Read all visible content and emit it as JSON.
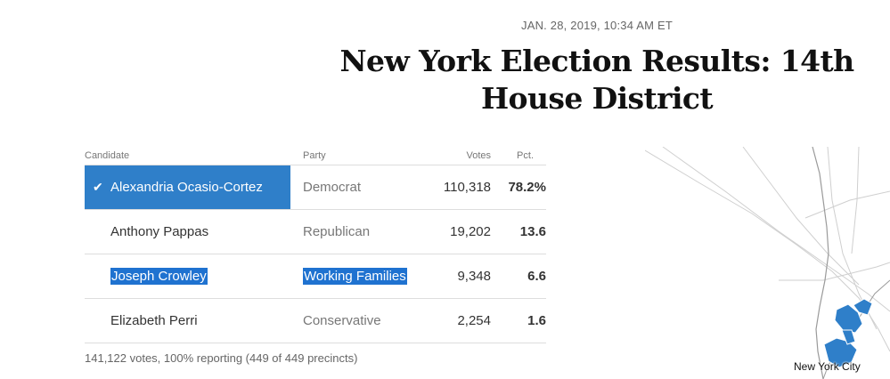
{
  "timestamp": "JAN. 28, 2019, 10:34 AM ET",
  "headline": "New York Election Results: 14th House District",
  "table": {
    "headers": {
      "candidate": "Candidate",
      "party": "Party",
      "votes": "Votes",
      "pct": "Pct."
    },
    "rows": [
      {
        "candidate": "Alexandria Ocasio-Cortez",
        "party": "Democrat",
        "votes": "110,318",
        "pct": "78.2%",
        "winner": true
      },
      {
        "candidate": "Anthony Pappas",
        "party": "Republican",
        "votes": "19,202",
        "pct": "13.6"
      },
      {
        "candidate": "Joseph Crowley",
        "party": "Working Families",
        "votes": "9,348",
        "pct": "6.6",
        "selected": true
      },
      {
        "candidate": "Elizabeth Perri",
        "party": "Conservative",
        "votes": "2,254",
        "pct": "1.6"
      }
    ]
  },
  "footnote": "141,122 votes, 100% reporting (449 of 449 precincts)",
  "map": {
    "label": "New York City",
    "district_color": "#2f7fc9"
  },
  "colors": {
    "winner_highlight": "#2f7fc9",
    "text_selection": "#1f72d0"
  }
}
